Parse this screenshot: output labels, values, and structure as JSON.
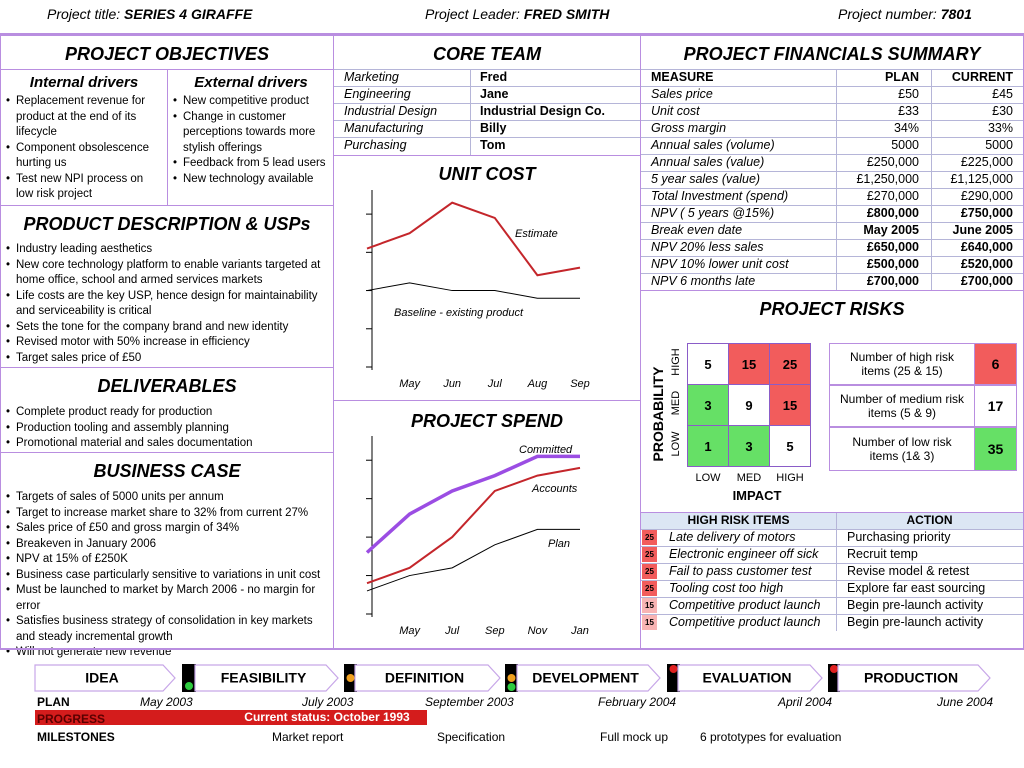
{
  "header": {
    "title_label": "Project title:",
    "title": "SERIES 4 GIRAFFE",
    "leader_label": "Project Leader:",
    "leader": "FRED SMITH",
    "number_label": "Project number:",
    "number": "7801"
  },
  "objectives": {
    "title": "PROJECT OBJECTIVES",
    "internal": {
      "heading": "Internal drivers",
      "items": [
        "Replacement revenue for product at the end of its lifecycle",
        "Component obsolescence hurting us",
        "Test new NPI process on low risk project"
      ]
    },
    "external": {
      "heading": "External drivers",
      "items": [
        "New competitive product",
        "Change in customer perceptions towards more stylish offerings",
        "Feedback from 5 lead users",
        "New technology available"
      ]
    }
  },
  "product": {
    "title": "PRODUCT DESCRIPTION & USPs",
    "items": [
      "Industry leading aesthetics",
      "New core technology platform to enable variants targeted at home office, school and armed services markets",
      "Life costs are the key USP, hence design for maintainability and serviceability is critical",
      "Sets the tone for the company brand and new identity",
      "Revised motor with 50% increase in efficiency",
      "Target sales price of £50"
    ]
  },
  "deliverables": {
    "title": "DELIVERABLES",
    "items": [
      "Complete product ready for production",
      "Production tooling and assembly planning",
      "Promotional material and sales documentation"
    ]
  },
  "business_case": {
    "title": "BUSINESS CASE",
    "items": [
      "Targets of sales of 5000 units per annum",
      "Target to increase market share to 32% from current 27%",
      "Sales price of £50 and gross margin of 34%",
      "Breakeven in January 2006",
      "NPV at 15% of £250K",
      "Business case particularly sensitive to variations in unit cost",
      "Must be launched to market by March 2006 - no margin for error",
      "Satisfies business strategy of consolidation in key markets and steady incremental growth",
      "Will not generate new revenue"
    ]
  },
  "core_team": {
    "title": "CORE TEAM",
    "rows": [
      [
        "Marketing",
        "Fred"
      ],
      [
        "Engineering",
        "Jane"
      ],
      [
        "Industrial Design",
        "Industrial Design Co."
      ],
      [
        "Manufacturing",
        "Billy"
      ],
      [
        "Purchasing",
        "Tom"
      ]
    ]
  },
  "chart_data": [
    {
      "type": "line",
      "title": "UNIT COST",
      "categories": [
        null,
        "May",
        "Jun",
        "Jul",
        "Aug",
        "Sep"
      ],
      "ylim": [
        0,
        4.5
      ],
      "yticks": [
        0,
        1,
        2,
        3,
        4
      ],
      "series": [
        {
          "name": "Estimate",
          "color": "#c4262b",
          "values": [
            3.1,
            3.5,
            4.3,
            3.9,
            2.4,
            2.6
          ]
        },
        {
          "name": "Baseline - existing product",
          "color": "#000000",
          "values": [
            2.0,
            2.2,
            2.0,
            2.0,
            1.8,
            1.8
          ]
        }
      ]
    },
    {
      "type": "line",
      "title": "PROJECT SPEND",
      "categories": [
        null,
        "May",
        "Jul",
        "Sep",
        "Nov",
        "Jan"
      ],
      "ylim": [
        0,
        4.5
      ],
      "yticks": [
        0,
        1,
        2,
        3,
        4
      ],
      "series": [
        {
          "name": "Committed",
          "color": "#9b4de3",
          "values": [
            1.6,
            2.6,
            3.2,
            3.6,
            4.1,
            4.1
          ]
        },
        {
          "name": "Accounts",
          "color": "#c4262b",
          "values": [
            0.8,
            1.2,
            2.0,
            3.2,
            3.6,
            3.8
          ]
        },
        {
          "name": "Plan",
          "color": "#000000",
          "values": [
            0.6,
            1.0,
            1.2,
            1.8,
            2.2,
            2.2
          ]
        }
      ]
    }
  ],
  "financials": {
    "title": "PROJECT FINANCIALS SUMMARY",
    "header": [
      "MEASURE",
      "PLAN",
      "CURRENT"
    ],
    "rows": [
      {
        "measure": "Sales price",
        "plan": "£50",
        "current": "£45"
      },
      {
        "measure": "Unit cost",
        "plan": "£33",
        "current": "£30"
      },
      {
        "measure": "Gross margin",
        "plan": "34%",
        "current": "33%"
      },
      {
        "measure": "Annual sales (volume)",
        "plan": "5000",
        "current": "5000"
      },
      {
        "measure": "Annual sales (value)",
        "plan": "£250,000",
        "current": "£225,000"
      },
      {
        "measure": "5 year sales (value)",
        "plan": "£1,250,000",
        "current": "£1,125,000"
      },
      {
        "measure": "Total Investment (spend)",
        "plan": "£270,000",
        "current": "£290,000"
      },
      {
        "measure": "NPV ( 5 years @15%)",
        "plan": "£800,000",
        "current": "£750,000",
        "bold": true
      },
      {
        "measure": "Break even date",
        "plan": "May 2005",
        "current": "June 2005",
        "bold": true
      },
      {
        "measure": "NPV 20% less sales",
        "plan": "£650,000",
        "current": "£640,000",
        "bold": true
      },
      {
        "measure": "NPV 10% lower unit cost",
        "plan": "£500,000",
        "current": "£520,000",
        "bold": true
      },
      {
        "measure": "NPV 6 months late",
        "plan": "£700,000",
        "current": "£700,000",
        "bold": true
      }
    ]
  },
  "risks": {
    "title": "PROJECT RISKS",
    "axis_y": "PROBABILITY",
    "axis_x": "IMPACT",
    "levels": [
      "LOW",
      "MED",
      "HIGH"
    ],
    "matrix": [
      [
        {
          "value": 5,
          "color": "#ffffff"
        },
        {
          "value": 15,
          "color": "#f25c5c"
        },
        {
          "value": 25,
          "color": "#f25c5c"
        }
      ],
      [
        {
          "value": 3,
          "color": "#66e066"
        },
        {
          "value": 9,
          "color": "#ffffff"
        },
        {
          "value": 15,
          "color": "#f25c5c"
        }
      ],
      [
        {
          "value": 1,
          "color": "#66e066"
        },
        {
          "value": 3,
          "color": "#66e066"
        },
        {
          "value": 5,
          "color": "#ffffff"
        }
      ]
    ],
    "legend": [
      {
        "label": "Number of high risk items (25 & 15)",
        "count": 6,
        "color": "#f25c5c"
      },
      {
        "label": "Number of medium risk items (5 & 9)",
        "count": 17,
        "color": "#ffffff"
      },
      {
        "label": "Number of low risk items (1& 3)",
        "count": 35,
        "color": "#66e066"
      }
    ]
  },
  "high_risk": {
    "header": [
      "HIGH RISK ITEMS",
      "ACTION"
    ],
    "rows": [
      {
        "score": 25,
        "color": "#f25c5c",
        "item": "Late delivery of motors",
        "action": "Purchasing priority"
      },
      {
        "score": 25,
        "color": "#f25c5c",
        "item": "Electronic engineer off sick",
        "action": "Recruit temp"
      },
      {
        "score": 25,
        "color": "#f25c5c",
        "item": "Fail to pass customer test",
        "action": "Revise model & retest"
      },
      {
        "score": 25,
        "color": "#f25c5c",
        "item": "Tooling cost too high",
        "action": "Explore far east sourcing"
      },
      {
        "score": 15,
        "color": "#f8b4b4",
        "item": "Competitive product launch",
        "action": "Begin pre-launch activity"
      },
      {
        "score": 15,
        "color": "#f8b4b4",
        "item": "Competitive product launch",
        "action": "Begin pre-launch activity"
      }
    ]
  },
  "timeline": {
    "phases": [
      "IDEA",
      "FEASIBILITY",
      "DEFINITION",
      "DEVELOPMENT",
      "EVALUATION",
      "PRODUCTION"
    ],
    "plan_label": "PLAN",
    "plan_dates": [
      "May 2003",
      "July 2003",
      "September 2003",
      "February 2004",
      "April 2004",
      "June 2004"
    ],
    "progress_label": "PROGRESS",
    "status": "Current status: October 1993",
    "milestones_label": "MILESTONES",
    "milestones": [
      "Market report",
      "Specification",
      "Full mock up",
      "6 prototypes for evaluation"
    ]
  }
}
